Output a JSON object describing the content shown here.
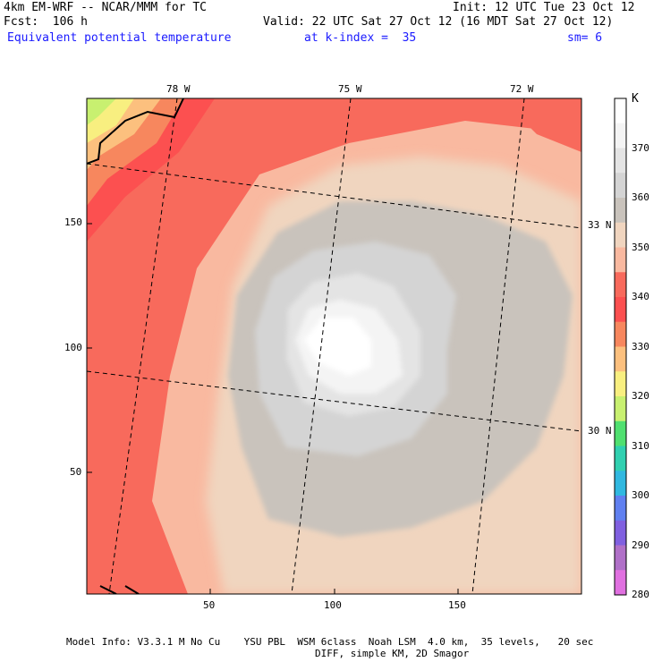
{
  "header": {
    "model": "4km EM-WRF -- NCAR/MMM for TC",
    "init": "Init: 12 UTC Tue 23 Oct 12",
    "fcst": "Fcst:  106 h",
    "valid": "Valid: 22 UTC Sat 27 Oct 12 (16 MDT Sat 27 Oct 12)",
    "field": "Equivalent potential temperature",
    "level": "at k-index =  35",
    "smooth": "sm= 6"
  },
  "map": {
    "lon_labels": [
      "78 W",
      "75 W",
      "72 W"
    ],
    "lat_labels": [
      "33 N",
      "30 N"
    ],
    "x_ticks": [
      "50",
      "100",
      "150"
    ],
    "y_ticks": [
      "150",
      "100",
      "50"
    ]
  },
  "colorbar": {
    "unit": "K",
    "labels": [
      "370",
      "360",
      "350",
      "340",
      "330",
      "320",
      "310",
      "300",
      "290",
      "280"
    ],
    "colors": [
      "#ffffff",
      "#f4f4f4",
      "#e4e4e4",
      "#d4d4d4",
      "#c9c3bc",
      "#f0d5bf",
      "#f9b9a0",
      "#f86a5c",
      "#fc5050",
      "#f7875e",
      "#fcc07e",
      "#f8ef80",
      "#c8f070",
      "#50e070",
      "#30d0b0",
      "#30b8e0",
      "#6080f0",
      "#8060e0",
      "#b070c8",
      "#e070e0"
    ]
  },
  "footer": {
    "line1": "Model Info: V3.3.1 M No Cu    YSU PBL  WSM 6class  Noah LSM  4.0 km,  35 levels,   20 sec",
    "line2": "DIFF, simple KM, 2D Smagor"
  }
}
